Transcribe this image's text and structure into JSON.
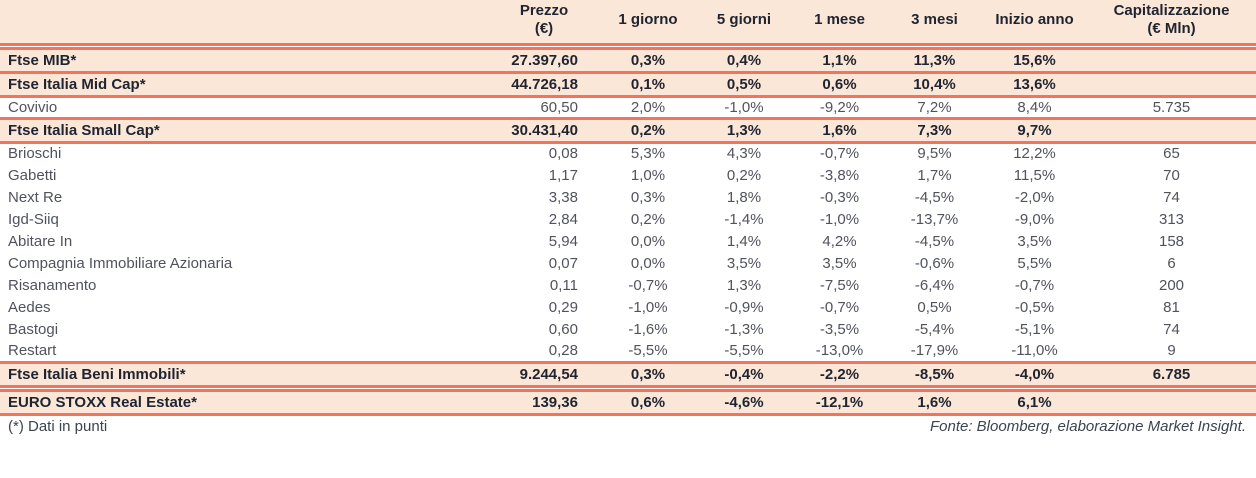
{
  "colors": {
    "accent_line": "#f4735c",
    "highlight_background": "#fbe7d8",
    "heading_text": "#1f2430",
    "body_text": "#50535c"
  },
  "table": {
    "columns": [
      {
        "label": ""
      },
      {
        "label": "Prezzo",
        "sub": "(€)"
      },
      {
        "label": "1 giorno"
      },
      {
        "label": "5 giorni"
      },
      {
        "label": "1 mese"
      },
      {
        "label": "3 mesi"
      },
      {
        "label": "Inizio anno"
      },
      {
        "label": "Capitalizzazione",
        "sub": "(€ Mln)"
      }
    ],
    "rows": [
      {
        "name": "Ftse MIB*",
        "style": "index",
        "spacer_before": true,
        "cells": [
          "27.397,60",
          "0,3%",
          "0,4%",
          "1,1%",
          "11,3%",
          "15,6%",
          ""
        ]
      },
      {
        "name": "Ftse Italia Mid Cap*",
        "style": "index",
        "cells": [
          "44.726,18",
          "0,1%",
          "0,5%",
          "0,6%",
          "10,4%",
          "13,6%",
          ""
        ]
      },
      {
        "name": "Covivio",
        "style": "stock",
        "cells": [
          "60,50",
          "2,0%",
          "-1,0%",
          "-9,2%",
          "7,2%",
          "8,4%",
          "5.735"
        ]
      },
      {
        "name": "Ftse Italia Small Cap*",
        "style": "index",
        "cells": [
          "30.431,40",
          "0,2%",
          "1,3%",
          "1,6%",
          "7,3%",
          "9,7%",
          ""
        ]
      },
      {
        "name": "Brioschi",
        "style": "stock",
        "cells": [
          "0,08",
          "5,3%",
          "4,3%",
          "-0,7%",
          "9,5%",
          "12,2%",
          "65"
        ]
      },
      {
        "name": "Gabetti",
        "style": "stock",
        "cells": [
          "1,17",
          "1,0%",
          "0,2%",
          "-3,8%",
          "1,7%",
          "11,5%",
          "70"
        ]
      },
      {
        "name": "Next Re",
        "style": "stock",
        "cells": [
          "3,38",
          "0,3%",
          "1,8%",
          "-0,3%",
          "-4,5%",
          "-2,0%",
          "74"
        ]
      },
      {
        "name": "Igd-Siiq",
        "style": "stock",
        "cells": [
          "2,84",
          "0,2%",
          "-1,4%",
          "-1,0%",
          "-13,7%",
          "-9,0%",
          "313"
        ]
      },
      {
        "name": "Abitare In",
        "style": "stock",
        "cells": [
          "5,94",
          "0,0%",
          "1,4%",
          "4,2%",
          "-4,5%",
          "3,5%",
          "158"
        ]
      },
      {
        "name": "Compagnia Immobiliare Azionaria",
        "style": "stock",
        "cells": [
          "0,07",
          "0,0%",
          "3,5%",
          "3,5%",
          "-0,6%",
          "5,5%",
          "6"
        ]
      },
      {
        "name": "Risanamento",
        "style": "stock",
        "cells": [
          "0,11",
          "-0,7%",
          "1,3%",
          "-7,5%",
          "-6,4%",
          "-0,7%",
          "200"
        ]
      },
      {
        "name": "Aedes",
        "style": "stock",
        "cells": [
          "0,29",
          "-1,0%",
          "-0,9%",
          "-0,7%",
          "0,5%",
          "-0,5%",
          "81"
        ]
      },
      {
        "name": "Bastogi",
        "style": "stock",
        "cells": [
          "0,60",
          "-1,6%",
          "-1,3%",
          "-3,5%",
          "-5,4%",
          "-5,1%",
          "74"
        ]
      },
      {
        "name": "Restart",
        "style": "stock",
        "cells": [
          "0,28",
          "-5,5%",
          "-5,5%",
          "-13,0%",
          "-17,9%",
          "-11,0%",
          "9"
        ]
      },
      {
        "name": "Ftse Italia Beni Immobili*",
        "style": "index",
        "cells": [
          "9.244,54",
          "0,3%",
          "-0,4%",
          "-2,2%",
          "-8,5%",
          "-4,0%",
          "6.785"
        ]
      },
      {
        "name": "EURO STOXX Real Estate*",
        "style": "index",
        "spacer_before": true,
        "cells": [
          "139,36",
          "0,6%",
          "-4,6%",
          "-12,1%",
          "1,6%",
          "6,1%",
          ""
        ]
      }
    ]
  },
  "footer": {
    "note": "(*) Dati in punti",
    "source": "Fonte: Bloomberg, elaborazione Market Insight."
  }
}
